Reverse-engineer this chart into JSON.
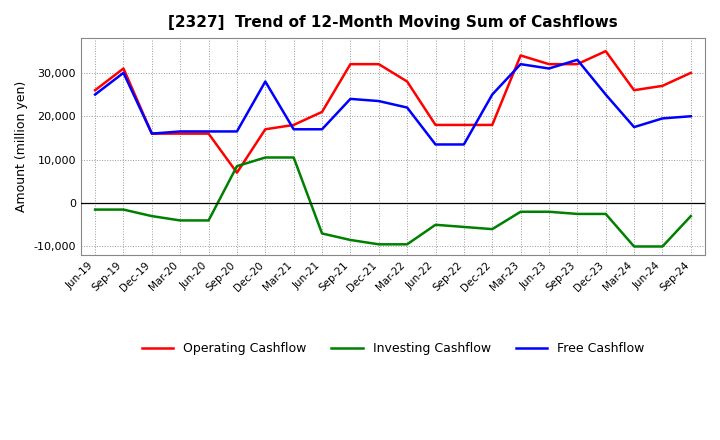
{
  "title": "[2327]  Trend of 12-Month Moving Sum of Cashflows",
  "ylabel": "Amount (million yen)",
  "x_labels": [
    "Jun-19",
    "Sep-19",
    "Dec-19",
    "Mar-20",
    "Jun-20",
    "Sep-20",
    "Dec-20",
    "Mar-21",
    "Jun-21",
    "Sep-21",
    "Dec-21",
    "Mar-22",
    "Jun-22",
    "Sep-22",
    "Dec-22",
    "Mar-23",
    "Jun-23",
    "Sep-23",
    "Dec-23",
    "Mar-24",
    "Jun-24",
    "Sep-24"
  ],
  "operating": [
    26000,
    31000,
    16000,
    16000,
    16000,
    7000,
    17000,
    18000,
    21000,
    32000,
    32000,
    28000,
    18000,
    18000,
    18000,
    34000,
    32000,
    32000,
    35000,
    26000,
    27000,
    30000
  ],
  "investing": [
    -1500,
    -1500,
    -3000,
    -4000,
    -4000,
    8500,
    10500,
    10500,
    -7000,
    -8500,
    -9500,
    -9500,
    -5000,
    -5500,
    -6000,
    -2000,
    -2000,
    -2500,
    -2500,
    -10000,
    -10000,
    -3000
  ],
  "free": [
    25000,
    30000,
    16000,
    16500,
    16500,
    16500,
    28000,
    17000,
    17000,
    24000,
    23500,
    22000,
    13500,
    13500,
    25000,
    32000,
    31000,
    33000,
    25000,
    17500,
    19500,
    20000
  ],
  "operating_color": "#ff0000",
  "investing_color": "#008000",
  "free_color": "#0000ff",
  "ylim": [
    -12000,
    38000
  ],
  "yticks": [
    -10000,
    0,
    10000,
    20000,
    30000
  ],
  "bg_color": "#ffffff",
  "plot_bg": "#ffffff",
  "grid_color": "#999999",
  "linewidth": 1.8
}
